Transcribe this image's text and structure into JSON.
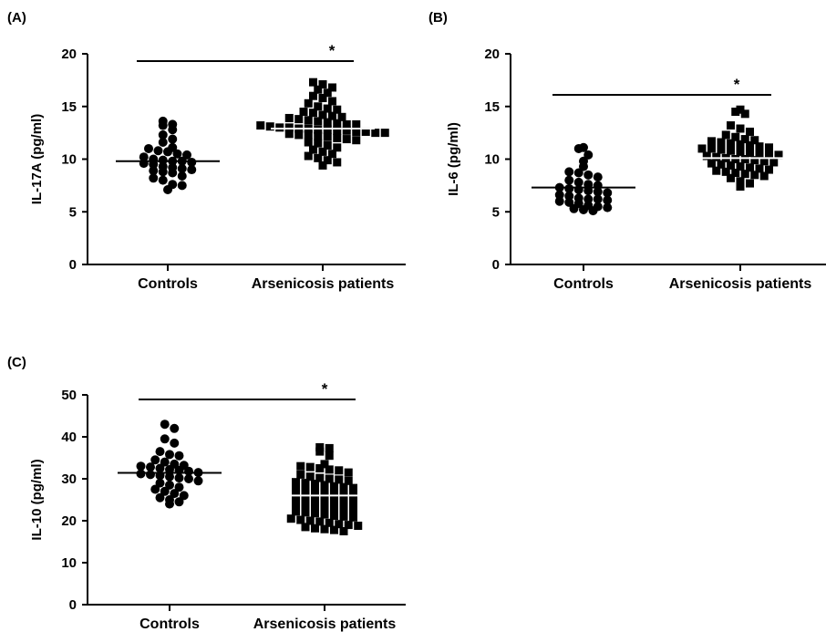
{
  "chart_data": [
    {
      "panel": "(A)",
      "type": "scatter",
      "ylabel": "IL-17A (pg/ml)",
      "ylim": [
        0,
        20
      ],
      "yticks": [
        0,
        5,
        10,
        15,
        20
      ],
      "categories": [
        "Controls",
        "Arsenicosis patients"
      ],
      "significance": "*",
      "groups": [
        {
          "category": "Controls",
          "marker": "circle",
          "mean": 9.8,
          "values": [
            13.6,
            13.3,
            13.2,
            12.8,
            12.3,
            11.9,
            11.6,
            11.1,
            11.0,
            10.8,
            10.7,
            10.5,
            10.4,
            10.2,
            10.0,
            9.9,
            9.8,
            9.8,
            9.7,
            9.6,
            9.5,
            9.3,
            9.2,
            9.1,
            9.0,
            8.9,
            8.8,
            8.7,
            8.4,
            8.2,
            8.0,
            7.6,
            7.5,
            7.1
          ]
        },
        {
          "category": "Arsenicosis patients",
          "marker": "square",
          "mean": 12.9,
          "values": [
            17.3,
            17.1,
            16.8,
            16.6,
            16.3,
            16.0,
            15.8,
            15.5,
            15.3,
            15.0,
            14.8,
            14.7,
            14.5,
            14.4,
            14.2,
            14.1,
            14.0,
            13.9,
            13.8,
            13.7,
            13.6,
            13.5,
            13.4,
            13.3,
            13.3,
            13.2,
            13.1,
            13.0,
            13.0,
            12.9,
            12.9,
            12.8,
            12.8,
            12.7,
            12.7,
            12.6,
            12.6,
            12.5,
            12.5,
            12.4,
            12.3,
            12.3,
            12.2,
            12.1,
            12.0,
            11.9,
            11.8,
            11.6,
            11.5,
            11.3,
            11.1,
            10.9,
            10.7,
            10.5,
            10.3,
            10.1,
            9.9,
            9.7,
            9.4
          ]
        }
      ]
    },
    {
      "panel": "(B)",
      "type": "scatter",
      "ylabel": "IL-6 (pg/ml)",
      "ylim": [
        0,
        20
      ],
      "yticks": [
        0,
        5,
        10,
        15,
        20
      ],
      "categories": [
        "Controls",
        "Arsenicosis patients"
      ],
      "significance": "*",
      "groups": [
        {
          "category": "Controls",
          "marker": "circle",
          "mean": 7.3,
          "values": [
            11.1,
            11.0,
            10.4,
            9.8,
            9.3,
            8.8,
            8.7,
            8.5,
            8.3,
            8.0,
            7.8,
            7.6,
            7.5,
            7.3,
            7.2,
            7.1,
            7.0,
            6.9,
            6.8,
            6.6,
            6.5,
            6.3,
            6.2,
            6.2,
            6.1,
            6.0,
            5.9,
            5.8,
            5.6,
            5.5,
            5.4,
            5.3,
            5.2,
            5.1
          ]
        },
        {
          "category": "Arsenicosis patients",
          "marker": "square",
          "mean": 10.1,
          "values": [
            14.7,
            14.5,
            14.3,
            13.2,
            12.9,
            12.6,
            12.3,
            12.1,
            11.9,
            11.8,
            11.7,
            11.6,
            11.5,
            11.4,
            11.3,
            11.2,
            11.1,
            11.0,
            11.0,
            10.9,
            10.8,
            10.7,
            10.6,
            10.5,
            10.5,
            10.4,
            10.3,
            10.2,
            10.1,
            10.0,
            10.0,
            9.9,
            9.8,
            9.7,
            9.6,
            9.5,
            9.4,
            9.3,
            9.2,
            9.1,
            9.0,
            8.9,
            8.8,
            8.7,
            8.6,
            8.5,
            8.4,
            8.2,
            7.9,
            7.7,
            7.4
          ]
        }
      ]
    },
    {
      "panel": "(C)",
      "type": "scatter",
      "ylabel": "IL-10 (pg/ml)",
      "ylim": [
        0,
        50
      ],
      "yticks": [
        0,
        10,
        20,
        30,
        40,
        50
      ],
      "categories": [
        "Controls",
        "Arsenicosis patients"
      ],
      "significance": "*",
      "groups": [
        {
          "category": "Controls",
          "marker": "circle",
          "mean": 31.4,
          "values": [
            43.0,
            42.0,
            39.5,
            38.5,
            36.5,
            35.8,
            35.5,
            34.5,
            34.0,
            33.5,
            33.2,
            33.0,
            32.8,
            32.5,
            32.2,
            32.0,
            31.8,
            31.5,
            31.2,
            31.0,
            30.8,
            30.5,
            30.2,
            30.0,
            29.5,
            29.0,
            28.5,
            28.0,
            27.5,
            27.0,
            26.5,
            26.0,
            25.5,
            25.0,
            24.5,
            24.0
          ]
        },
        {
          "category": "Arsenicosis patients",
          "marker": "square",
          "mean": 26.0,
          "values": [
            37.5,
            37.3,
            36.5,
            35.5,
            33.5,
            33.0,
            32.8,
            32.5,
            32.2,
            32.0,
            31.5,
            31.0,
            30.5,
            30.2,
            30.0,
            29.8,
            29.5,
            29.2,
            29.0,
            28.8,
            28.5,
            28.2,
            28.0,
            27.8,
            27.5,
            27.2,
            27.0,
            26.8,
            26.5,
            26.2,
            26.0,
            25.8,
            25.5,
            25.2,
            25.0,
            24.8,
            24.5,
            24.2,
            24.0,
            23.8,
            23.5,
            23.2,
            23.0,
            22.8,
            22.5,
            22.2,
            22.0,
            21.8,
            21.5,
            21.2,
            21.0,
            20.8,
            20.5,
            20.2,
            20.0,
            19.8,
            19.5,
            19.2,
            19.0,
            18.8,
            18.5,
            18.2,
            18.0,
            17.8,
            17.5
          ]
        }
      ]
    }
  ]
}
